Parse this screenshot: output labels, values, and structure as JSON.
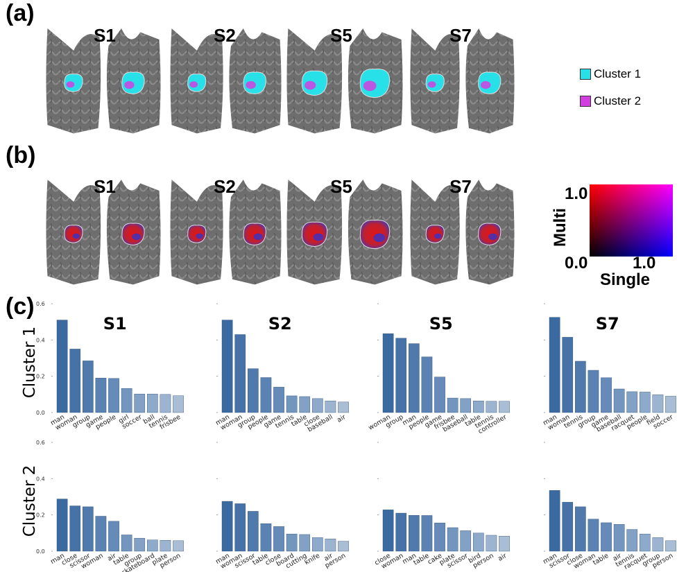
{
  "panels": {
    "a": "(a)",
    "b": "(b)",
    "c": "(c)"
  },
  "subjects": [
    "S1",
    "S2",
    "S5",
    "S7"
  ],
  "legend": {
    "cluster1": {
      "label": "Cluster 1",
      "color": "#28e0e8"
    },
    "cluster2": {
      "label": "Cluster 2",
      "color": "#d23ee0"
    }
  },
  "colormap": {
    "y_label": "Multi",
    "x_label": "Single",
    "y_max": "1.0",
    "origin": "0.0",
    "x_max": "1.0"
  },
  "row_labels": [
    "Cluster 1",
    "Cluster 2"
  ],
  "chart_data": [
    {
      "type": "bar",
      "subject": "S1",
      "cluster": "Cluster 1",
      "ylim": [
        0,
        0.6
      ],
      "ticks": [
        0.0,
        0.2,
        0.4,
        0.6
      ],
      "categories": [
        "man",
        "woman",
        "group",
        "game",
        "people",
        "girl",
        "soccer",
        "ball",
        "tennis",
        "frisbee"
      ],
      "values": [
        0.51,
        0.35,
        0.285,
        0.19,
        0.188,
        0.133,
        0.102,
        0.102,
        0.1,
        0.093
      ]
    },
    {
      "type": "bar",
      "subject": "S2",
      "cluster": "Cluster 1",
      "ylim": [
        0,
        0.6
      ],
      "categories": [
        "man",
        "woman",
        "group",
        "people",
        "game",
        "tennis",
        "table",
        "close",
        "baseball",
        "air"
      ],
      "values": [
        0.51,
        0.43,
        0.242,
        0.193,
        0.14,
        0.092,
        0.088,
        0.077,
        0.064,
        0.058
      ]
    },
    {
      "type": "bar",
      "subject": "S5",
      "cluster": "Cluster 1",
      "ylim": [
        0,
        0.6
      ],
      "categories": [
        "woman",
        "group",
        "man",
        "people",
        "game",
        "frisbee",
        "baseball",
        "table",
        "tennis",
        "controller"
      ],
      "values": [
        0.435,
        0.41,
        0.38,
        0.307,
        0.196,
        0.08,
        0.077,
        0.064,
        0.062,
        0.062
      ]
    },
    {
      "type": "bar",
      "subject": "S7",
      "cluster": "Cluster 1",
      "ylim": [
        0,
        0.6
      ],
      "categories": [
        "man",
        "woman",
        "tennis",
        "group",
        "game",
        "baseball",
        "racquet",
        "people",
        "field",
        "soccer"
      ],
      "values": [
        0.525,
        0.415,
        0.283,
        0.233,
        0.192,
        0.13,
        0.115,
        0.113,
        0.098,
        0.09
      ]
    },
    {
      "type": "bar",
      "subject": "S1",
      "cluster": "Cluster 2",
      "ylim": [
        0,
        0.6
      ],
      "ticks": [
        0.0,
        0.2,
        0.4,
        0.6
      ],
      "categories": [
        "man",
        "close",
        "scissor",
        "woman",
        "air",
        "table",
        "group",
        "skateboard",
        "plate",
        "person"
      ],
      "values": [
        0.288,
        0.25,
        0.245,
        0.193,
        0.165,
        0.09,
        0.072,
        0.062,
        0.06,
        0.058
      ]
    },
    {
      "type": "bar",
      "subject": "S2",
      "cluster": "Cluster 2",
      "ylim": [
        0,
        0.6
      ],
      "categories": [
        "man",
        "woman",
        "scissor",
        "table",
        "close",
        "board",
        "cutting",
        "knife",
        "air",
        "person"
      ],
      "values": [
        0.275,
        0.262,
        0.22,
        0.152,
        0.136,
        0.095,
        0.092,
        0.075,
        0.068,
        0.055
      ]
    },
    {
      "type": "bar",
      "subject": "S5",
      "cluster": "Cluster 2",
      "ylim": [
        0,
        0.6
      ],
      "categories": [
        "close",
        "woman",
        "man",
        "table",
        "cake",
        "plate",
        "scissor",
        "bird",
        "person",
        "air"
      ],
      "values": [
        0.228,
        0.21,
        0.198,
        0.197,
        0.156,
        0.13,
        0.113,
        0.1,
        0.088,
        0.083
      ]
    },
    {
      "type": "bar",
      "subject": "S7",
      "cluster": "Cluster 2",
      "ylim": [
        0,
        0.6
      ],
      "categories": [
        "man",
        "scissor",
        "close",
        "woman",
        "table",
        "air",
        "tennis",
        "racquet",
        "group",
        "person"
      ],
      "values": [
        0.335,
        0.27,
        0.245,
        0.177,
        0.157,
        0.148,
        0.12,
        0.095,
        0.075,
        0.058
      ]
    }
  ]
}
